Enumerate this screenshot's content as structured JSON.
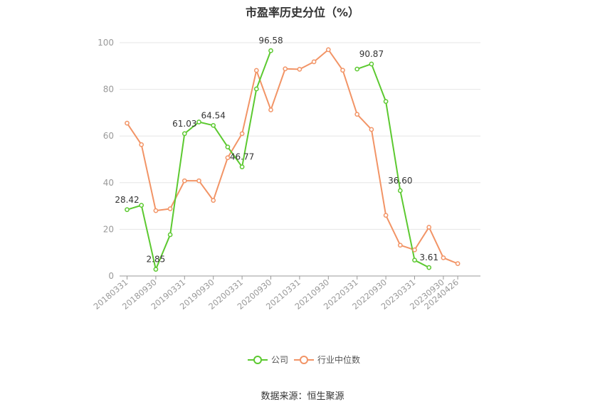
{
  "chart_data": {
    "type": "line",
    "title": "市盈率历史分位（%）",
    "ylim": [
      0,
      100
    ],
    "yticks": [
      "0",
      "20",
      "40",
      "60",
      "80",
      "100"
    ],
    "xtick_labels": [
      "20180331",
      "20180930",
      "20190331",
      "20190930",
      "20200331",
      "20200930",
      "20210331",
      "20210930",
      "20220331",
      "20220930",
      "20230331",
      "20230930",
      "20240426"
    ],
    "x_count": 24,
    "grid": true,
    "legend_position": "bottom",
    "series": [
      {
        "name": "公司",
        "color": "#5cc930",
        "values": [
          28.42,
          30.3,
          2.85,
          17.7,
          61.03,
          66.0,
          64.54,
          55.3,
          46.77,
          80.2,
          96.58,
          null,
          null,
          null,
          null,
          null,
          88.7,
          90.87,
          74.8,
          36.6,
          6.8,
          3.61,
          null,
          null
        ],
        "labels": {
          "0": "28.42",
          "2": "2.85",
          "4": "61.03",
          "6": "64.54",
          "8": "46.77",
          "10": "96.58",
          "17": "90.87",
          "19": "36.60",
          "21": "3.61"
        }
      },
      {
        "name": "行业中位数",
        "color": "#f29466",
        "values": [
          65.5,
          56.3,
          28.0,
          28.8,
          40.8,
          40.8,
          32.4,
          50.7,
          61.0,
          88.1,
          71.2,
          88.8,
          88.6,
          91.8,
          97.0,
          88.2,
          69.3,
          62.8,
          26.0,
          13.2,
          11.2,
          20.9,
          7.8,
          5.3
        ]
      }
    ]
  },
  "source_text": "数据来源：恒生聚源"
}
